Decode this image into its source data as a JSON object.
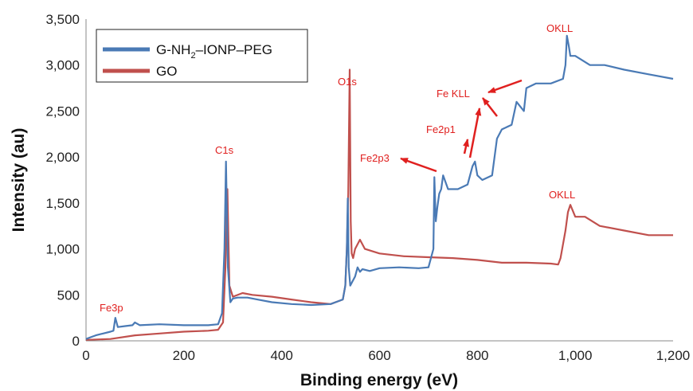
{
  "chart_data": {
    "type": "line",
    "xlabel": "Binding energy (eV)",
    "ylabel": "Intensity (au)",
    "xlim": [
      0,
      1200
    ],
    "ylim": [
      0,
      3500
    ],
    "x_ticks": [
      "0",
      "200",
      "400",
      "600",
      "800",
      "1,000",
      "1,200"
    ],
    "y_ticks": [
      "0",
      "500",
      "1,000",
      "1,500",
      "2,000",
      "2,500",
      "3,000",
      "3,500"
    ],
    "grid": false,
    "legend_position": "top-left",
    "series": [
      {
        "name": "G-NH2–IONP–PEG",
        "legend_main": "G-NH",
        "legend_sub": "2",
        "legend_rest": "–IONP–PEG",
        "color": "#4a7ab5",
        "x": [
          0,
          10,
          20,
          35,
          50,
          56,
          60,
          65,
          80,
          95,
          100,
          110,
          150,
          200,
          250,
          270,
          278,
          283,
          286,
          290,
          295,
          300,
          310,
          330,
          350,
          380,
          420,
          460,
          500,
          525,
          530,
          533,
          535,
          537,
          540,
          545,
          550,
          555,
          560,
          565,
          580,
          600,
          640,
          680,
          700,
          710,
          712,
          715,
          718,
          722,
          726,
          730,
          740,
          760,
          780,
          790,
          795,
          800,
          810,
          830,
          840,
          850,
          870,
          880,
          895,
          900,
          920,
          950,
          975,
          980,
          983,
          987,
          990,
          1000,
          1030,
          1060,
          1100,
          1150,
          1200
        ],
        "values": [
          20,
          40,
          60,
          80,
          100,
          110,
          250,
          150,
          160,
          170,
          200,
          170,
          180,
          170,
          170,
          180,
          300,
          1000,
          1950,
          800,
          420,
          460,
          470,
          470,
          450,
          420,
          400,
          390,
          400,
          450,
          600,
          1000,
          1550,
          800,
          600,
          650,
          700,
          800,
          750,
          780,
          760,
          790,
          800,
          790,
          800,
          1000,
          1780,
          1300,
          1450,
          1600,
          1650,
          1800,
          1650,
          1650,
          1700,
          1900,
          1950,
          1800,
          1750,
          1800,
          2200,
          2300,
          2350,
          2600,
          2500,
          2750,
          2800,
          2800,
          2850,
          3000,
          3320,
          3200,
          3100,
          3100,
          3000,
          3000,
          2950,
          2900,
          2850
        ]
      },
      {
        "name": "GO",
        "color": "#c0504d",
        "x": [
          0,
          50,
          100,
          150,
          200,
          250,
          270,
          280,
          285,
          289,
          293,
          300,
          320,
          340,
          380,
          420,
          460,
          500,
          525,
          530,
          533,
          536,
          539,
          541,
          543,
          546,
          550,
          560,
          570,
          600,
          650,
          700,
          750,
          800,
          850,
          900,
          950,
          965,
          970,
          975,
          980,
          985,
          990,
          1000,
          1020,
          1050,
          1100,
          1150,
          1200
        ],
        "values": [
          10,
          20,
          60,
          80,
          100,
          110,
          120,
          200,
          800,
          1650,
          600,
          480,
          520,
          500,
          480,
          450,
          420,
          400,
          450,
          600,
          1000,
          1600,
          2950,
          1300,
          950,
          900,
          1000,
          1100,
          1000,
          950,
          920,
          910,
          900,
          880,
          850,
          850,
          840,
          830,
          900,
          1050,
          1200,
          1400,
          1480,
          1350,
          1350,
          1250,
          1200,
          1150,
          1150
        ]
      }
    ],
    "annotations": [
      {
        "text": "Fe3p"
      },
      {
        "text": "C1s"
      },
      {
        "text": "O1s"
      },
      {
        "text": "Fe2p3"
      },
      {
        "text": "Fe2p1"
      },
      {
        "text": "Fe KLL"
      },
      {
        "text": "OKLL"
      },
      {
        "text": "OKLL"
      }
    ]
  }
}
